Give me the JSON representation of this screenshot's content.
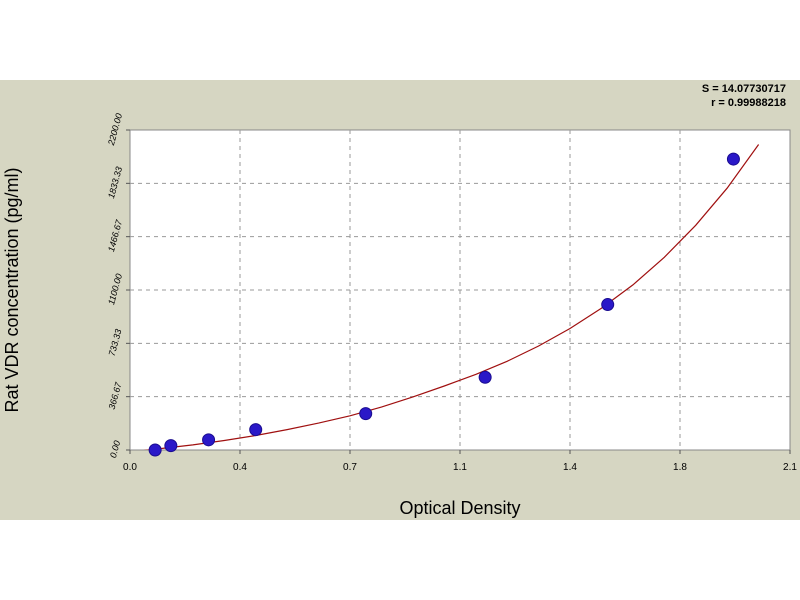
{
  "chart_data": {
    "type": "scatter",
    "xlabel": "Optical Density",
    "ylabel": "Rat VDR concentration (pg/ml)",
    "x_ticks": [
      "0.0",
      "0.4",
      "0.7",
      "1.1",
      "1.4",
      "1.8",
      "2.1"
    ],
    "y_ticks": [
      "0.00",
      "366.67",
      "733.33",
      "1100.00",
      "1466.67",
      "1833.33",
      "2200.00"
    ],
    "xlim": [
      0,
      2.1
    ],
    "ylim": [
      0,
      2200
    ],
    "grid": true,
    "stats": [
      "S = 14.07730717",
      "r = 0.99988218"
    ],
    "colors": {
      "points": "#2a18c8",
      "curve": "#a01010",
      "panel": "#d6d6c2",
      "plot_bg": "#ffffff",
      "grid": "#9a9a9a"
    },
    "series": [
      {
        "points": [
          {
            "x": 0.08,
            "y": 0
          },
          {
            "x": 0.13,
            "y": 30
          },
          {
            "x": 0.25,
            "y": 70
          },
          {
            "x": 0.4,
            "y": 140
          },
          {
            "x": 0.75,
            "y": 250
          },
          {
            "x": 1.13,
            "y": 500
          },
          {
            "x": 1.52,
            "y": 1000
          },
          {
            "x": 1.92,
            "y": 2000
          }
        ]
      }
    ],
    "fit_curve": {
      "x": [
        0.0,
        0.1,
        0.2,
        0.3,
        0.4,
        0.5,
        0.6,
        0.7,
        0.8,
        0.9,
        1.0,
        1.1,
        1.2,
        1.3,
        1.4,
        1.5,
        1.6,
        1.7,
        1.8,
        1.9,
        2.0
      ],
      "y": [
        -15,
        10,
        35,
        65,
        100,
        140,
        185,
        235,
        295,
        365,
        440,
        520,
        610,
        715,
        835,
        975,
        1135,
        1325,
        1545,
        1800,
        2100
      ]
    }
  }
}
